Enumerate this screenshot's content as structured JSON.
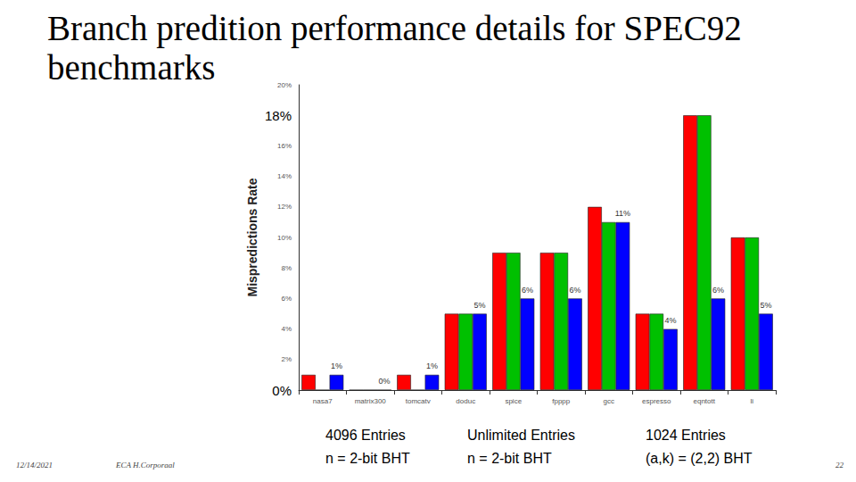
{
  "chart_data": {
    "type": "bar",
    "title": "Branch predition performance details for SPEC92 benchmarks",
    "y_label": "Mispredictions Rate",
    "categories": [
      "nasa7",
      "matrix300",
      "tomcatv",
      "doduc",
      "spice",
      "fpppp",
      "gcc",
      "espresso",
      "eqntott",
      "li"
    ],
    "series": [
      {
        "name": "4096 Entries\nn = 2-bit BHT",
        "color": "#ff0000",
        "values": [
          1,
          0,
          1,
          5,
          9,
          9,
          12,
          5,
          18,
          10
        ]
      },
      {
        "name": "Unlimited Entries\nn = 2-bit BHT",
        "color": "#00c000",
        "values": [
          0,
          0,
          0,
          5,
          9,
          9,
          11,
          5,
          18,
          10
        ]
      },
      {
        "name": "1024 Entries\n(a,k) = (2,2) BHT",
        "color": "#0000ff",
        "values": [
          1,
          0,
          1,
          5,
          6,
          6,
          11,
          4,
          6,
          5
        ],
        "data_labels": true,
        "value_labels": [
          "1%",
          "0%",
          "1%",
          "5%",
          "6%",
          "6%",
          "11%",
          "4%",
          "6%",
          "5%"
        ]
      }
    ],
    "ylim": [
      0,
      20
    ],
    "yticks": [
      {
        "value": 2,
        "label": "2%"
      },
      {
        "value": 4,
        "label": "4%"
      },
      {
        "value": 6,
        "label": "6%"
      },
      {
        "value": 8,
        "label": "8%"
      },
      {
        "value": 10,
        "label": "10%"
      },
      {
        "value": 12,
        "label": "12%"
      },
      {
        "value": 14,
        "label": "14%"
      },
      {
        "value": 16,
        "label": "16%"
      },
      {
        "value": 20,
        "label": "20%"
      }
    ],
    "annotations": [
      {
        "text": "18%",
        "y": 18
      },
      {
        "text": "0%",
        "y": 0
      }
    ],
    "grid": false
  },
  "footer": {
    "date": "12/14/2021",
    "author": "ECA H.Corporaal",
    "page": "22"
  }
}
